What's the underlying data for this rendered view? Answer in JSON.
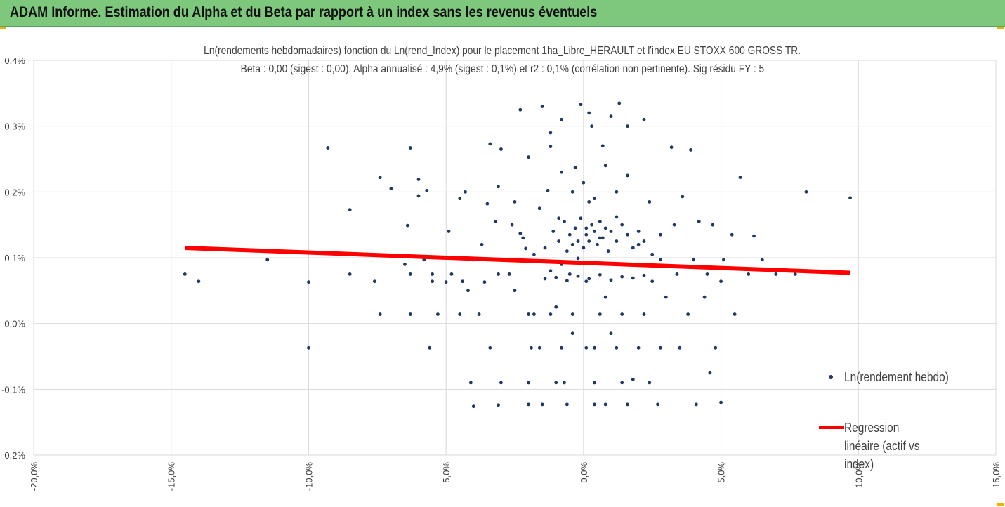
{
  "banner": {
    "title": "ADAM Informe. Estimation du Alpha et du Beta par rapport à un index sans les revenus éventuels"
  },
  "chart_data": {
    "type": "scatter",
    "title": "Ln(rendements hebdomadaires) fonction du Ln(rend_Index) pour le placement 1ha_Libre_HERAULT et l'index EU STOXX 600 GROSS TR.",
    "subtitle": "Beta : 0,00 (sigest : 0,00). Alpha annualisé : 4,9% (sigest : 0,1%) et r2 : 0,1% (corrélation non pertinente). Sig résidu FY : 5",
    "xlim": [
      -0.2,
      0.15
    ],
    "ylim": [
      -0.002,
      0.004
    ],
    "x_ticks": [
      "-20,0%",
      "-15,0%",
      "-10,0%",
      "-5,0%",
      "0,0%",
      "5,0%",
      "10,0%",
      "15,0%"
    ],
    "y_ticks": [
      "-0,2%",
      "-0,1%",
      "0,0%",
      "0,1%",
      "0,2%",
      "0,3%",
      "0,4%"
    ],
    "grid": true,
    "legend_position": "right",
    "colors": {
      "points": "#1f3864",
      "regression": "#ff0000",
      "grid": "#d9d9d9",
      "banner": "#7dc87d"
    },
    "series": [
      {
        "name": "Ln(rendement hebdo)",
        "kind": "scatter",
        "points": [
          [
            -0.145,
            0.00075
          ],
          [
            -0.14,
            0.00064
          ],
          [
            -0.115,
            0.00097
          ],
          [
            -0.1,
            0.00063
          ],
          [
            -0.1,
            -0.00037
          ],
          [
            -0.093,
            0.00267
          ],
          [
            -0.085,
            0.00173
          ],
          [
            -0.085,
            0.00075
          ],
          [
            -0.076,
            0.00064
          ],
          [
            -0.074,
            0.00222
          ],
          [
            -0.074,
            0.00014
          ],
          [
            -0.07,
            0.00205
          ],
          [
            -0.065,
            0.0009
          ],
          [
            -0.064,
            0.00149
          ],
          [
            -0.063,
            0.00075
          ],
          [
            -0.063,
            0.00014
          ],
          [
            -0.063,
            0.00267
          ],
          [
            -0.06,
            0.00219
          ],
          [
            -0.06,
            0.00194
          ],
          [
            -0.058,
            0.00097
          ],
          [
            -0.057,
            0.00202
          ],
          [
            -0.056,
            -0.00037
          ],
          [
            -0.055,
            0.00075
          ],
          [
            -0.055,
            0.00064
          ],
          [
            -0.053,
            0.00014
          ],
          [
            -0.05,
            0.00063
          ],
          [
            -0.049,
            0.0014
          ],
          [
            -0.048,
            0.00075
          ],
          [
            -0.045,
            0.00014
          ],
          [
            -0.045,
            0.0019
          ],
          [
            -0.044,
            0.00064
          ],
          [
            -0.043,
            0.002
          ],
          [
            -0.042,
            0.0005
          ],
          [
            -0.041,
            -0.0009
          ],
          [
            -0.04,
            -0.00126
          ],
          [
            -0.04,
            0.00097
          ],
          [
            -0.038,
            0.00014
          ],
          [
            -0.037,
            0.0012
          ],
          [
            -0.036,
            0.00063
          ],
          [
            -0.035,
            0.00182
          ],
          [
            -0.034,
            -0.00037
          ],
          [
            -0.034,
            0.00273
          ],
          [
            -0.032,
            0.00155
          ],
          [
            -0.031,
            0.00208
          ],
          [
            -0.031,
            0.00075
          ],
          [
            -0.031,
            -0.00124
          ],
          [
            -0.03,
            -0.0009
          ],
          [
            -0.03,
            0.00265
          ],
          [
            -0.028,
            0.00097
          ],
          [
            -0.027,
            0.00075
          ],
          [
            -0.025,
            0.00185
          ],
          [
            -0.025,
            0.0005
          ],
          [
            -0.023,
            0.00325
          ],
          [
            -0.023,
            0.00137
          ],
          [
            -0.021,
            0.00114
          ],
          [
            -0.02,
            0.00253
          ],
          [
            -0.02,
            -0.00123
          ],
          [
            -0.019,
            -0.00037
          ],
          [
            -0.018,
            0.00014
          ],
          [
            -0.015,
            0.0033
          ],
          [
            -0.015,
            -0.00123
          ],
          [
            -0.013,
            0.00202
          ],
          [
            -0.012,
            0.00269
          ],
          [
            -0.01,
            0.00025
          ],
          [
            -0.009,
            0.0016
          ],
          [
            -0.008,
            0.0031
          ],
          [
            -0.007,
            -0.0009
          ],
          [
            -0.005,
            0.00075
          ],
          [
            -0.004,
            -0.00015
          ],
          [
            -0.003,
            0.00237
          ],
          [
            -0.002,
            0.00099
          ],
          [
            -0.001,
            0.00333
          ],
          [
            0.0,
            0.00214
          ],
          [
            0.001,
            0.00145
          ],
          [
            0.001,
            0.00064
          ],
          [
            0.001,
            -0.00037
          ],
          [
            0.002,
            0.00185
          ],
          [
            0.003,
            0.003
          ],
          [
            0.004,
            -0.00123
          ],
          [
            0.006,
            0.0013
          ],
          [
            0.007,
            0.0027
          ],
          [
            0.008,
            0.0004
          ],
          [
            0.01,
            -0.00015
          ],
          [
            0.012,
            0.00162
          ],
          [
            0.013,
            0.00335
          ],
          [
            0.014,
            0.0009
          ],
          [
            0.016,
            0.00225
          ],
          [
            0.018,
            -0.00085
          ],
          [
            0.02,
            0.0012
          ],
          [
            0.022,
            0.0031
          ],
          [
            0.024,
            0.00185
          ],
          [
            0.025,
            0.00064
          ],
          [
            0.027,
            -0.00123
          ],
          [
            0.028,
            0.00097
          ],
          [
            0.03,
            0.0004
          ],
          [
            0.032,
            0.00268
          ],
          [
            0.033,
            0.0015
          ],
          [
            0.034,
            0.00075
          ],
          [
            0.035,
            -0.00037
          ],
          [
            0.036,
            0.00193
          ],
          [
            0.038,
            0.00014
          ],
          [
            0.039,
            0.00264
          ],
          [
            0.04,
            0.00097
          ],
          [
            0.041,
            -0.00123
          ],
          [
            0.042,
            0.00155
          ],
          [
            0.044,
            0.0004
          ],
          [
            0.045,
            0.00075
          ],
          [
            0.046,
            -0.00075
          ],
          [
            0.047,
            0.0015
          ],
          [
            0.048,
            -0.00037
          ],
          [
            0.05,
            0.00064
          ],
          [
            0.05,
            -0.0012
          ],
          [
            0.051,
            0.00097
          ],
          [
            0.054,
            0.00135
          ],
          [
            0.055,
            0.00014
          ],
          [
            0.057,
            0.00222
          ],
          [
            0.06,
            0.00075
          ],
          [
            0.062,
            0.00133
          ],
          [
            0.065,
            0.00097
          ],
          [
            0.07,
            0.00075
          ],
          [
            0.077,
            0.00075
          ],
          [
            0.081,
            0.002
          ],
          [
            0.097,
            0.00191
          ],
          [
            -0.026,
            0.0015
          ],
          [
            -0.022,
            0.0013
          ],
          [
            -0.018,
            0.00105
          ],
          [
            -0.016,
            0.00175
          ],
          [
            -0.014,
            0.00115
          ],
          [
            -0.012,
            0.0008
          ],
          [
            -0.011,
            0.0014
          ],
          [
            -0.009,
            0.00125
          ],
          [
            -0.008,
            0.0009
          ],
          [
            -0.007,
            0.00155
          ],
          [
            -0.006,
            0.0011
          ],
          [
            -0.005,
            0.00135
          ],
          [
            -0.004,
            0.0012
          ],
          [
            -0.003,
            0.00145
          ],
          [
            -0.002,
            0.00125
          ],
          [
            -0.001,
            0.0016
          ],
          [
            0.0,
            0.00115
          ],
          [
            0.001,
            0.00135
          ],
          [
            0.002,
            0.00125
          ],
          [
            0.003,
            0.0015
          ],
          [
            0.004,
            0.0014
          ],
          [
            0.005,
            0.0012
          ],
          [
            0.006,
            0.00155
          ],
          [
            0.007,
            0.0013
          ],
          [
            0.008,
            0.00145
          ],
          [
            0.009,
            0.0011
          ],
          [
            0.01,
            0.0014
          ],
          [
            0.012,
            0.00125
          ],
          [
            0.014,
            0.0015
          ],
          [
            0.016,
            0.00135
          ],
          [
            0.018,
            0.00115
          ],
          [
            0.02,
            0.0014
          ],
          [
            0.022,
            0.00125
          ],
          [
            0.025,
            0.00105
          ],
          [
            0.028,
            0.00135
          ],
          [
            -0.01,
            0.0007
          ],
          [
            -0.006,
            0.00065
          ],
          [
            -0.002,
            0.00072
          ],
          [
            0.002,
            0.00068
          ],
          [
            0.006,
            0.00074
          ],
          [
            0.01,
            0.00066
          ],
          [
            0.014,
            0.00071
          ],
          [
            0.018,
            0.00069
          ],
          [
            0.022,
            0.00073
          ],
          [
            -0.014,
            0.00068
          ],
          [
            -0.02,
            0.00014
          ],
          [
            -0.012,
            0.00014
          ],
          [
            -0.004,
            0.00014
          ],
          [
            0.006,
            0.00014
          ],
          [
            0.014,
            0.00014
          ],
          [
            0.022,
            0.00014
          ],
          [
            -0.016,
            -0.00037
          ],
          [
            -0.008,
            -0.00037
          ],
          [
            0.004,
            -0.00037
          ],
          [
            0.012,
            -0.00037
          ],
          [
            0.02,
            -0.00037
          ],
          [
            0.028,
            -0.00037
          ],
          [
            -0.02,
            -0.0009
          ],
          [
            -0.01,
            -0.0009
          ],
          [
            0.004,
            -0.0009
          ],
          [
            0.014,
            -0.0009
          ],
          [
            0.024,
            -0.0009
          ],
          [
            -0.006,
            -0.00123
          ],
          [
            0.008,
            -0.00123
          ],
          [
            0.016,
            -0.00123
          ],
          [
            -0.004,
            0.002
          ],
          [
            0.004,
            0.0019
          ],
          [
            0.012,
            0.002
          ],
          [
            -0.008,
            0.0023
          ],
          [
            0.008,
            0.0024
          ],
          [
            0.002,
            0.0032
          ],
          [
            0.01,
            0.00315
          ],
          [
            -0.012,
            0.0029
          ],
          [
            0.016,
            0.003
          ]
        ]
      },
      {
        "name": "Regression linéaire (actif vs index)",
        "kind": "line",
        "points": [
          [
            -0.145,
            0.00115
          ],
          [
            0.097,
            0.00077
          ]
        ]
      }
    ]
  }
}
